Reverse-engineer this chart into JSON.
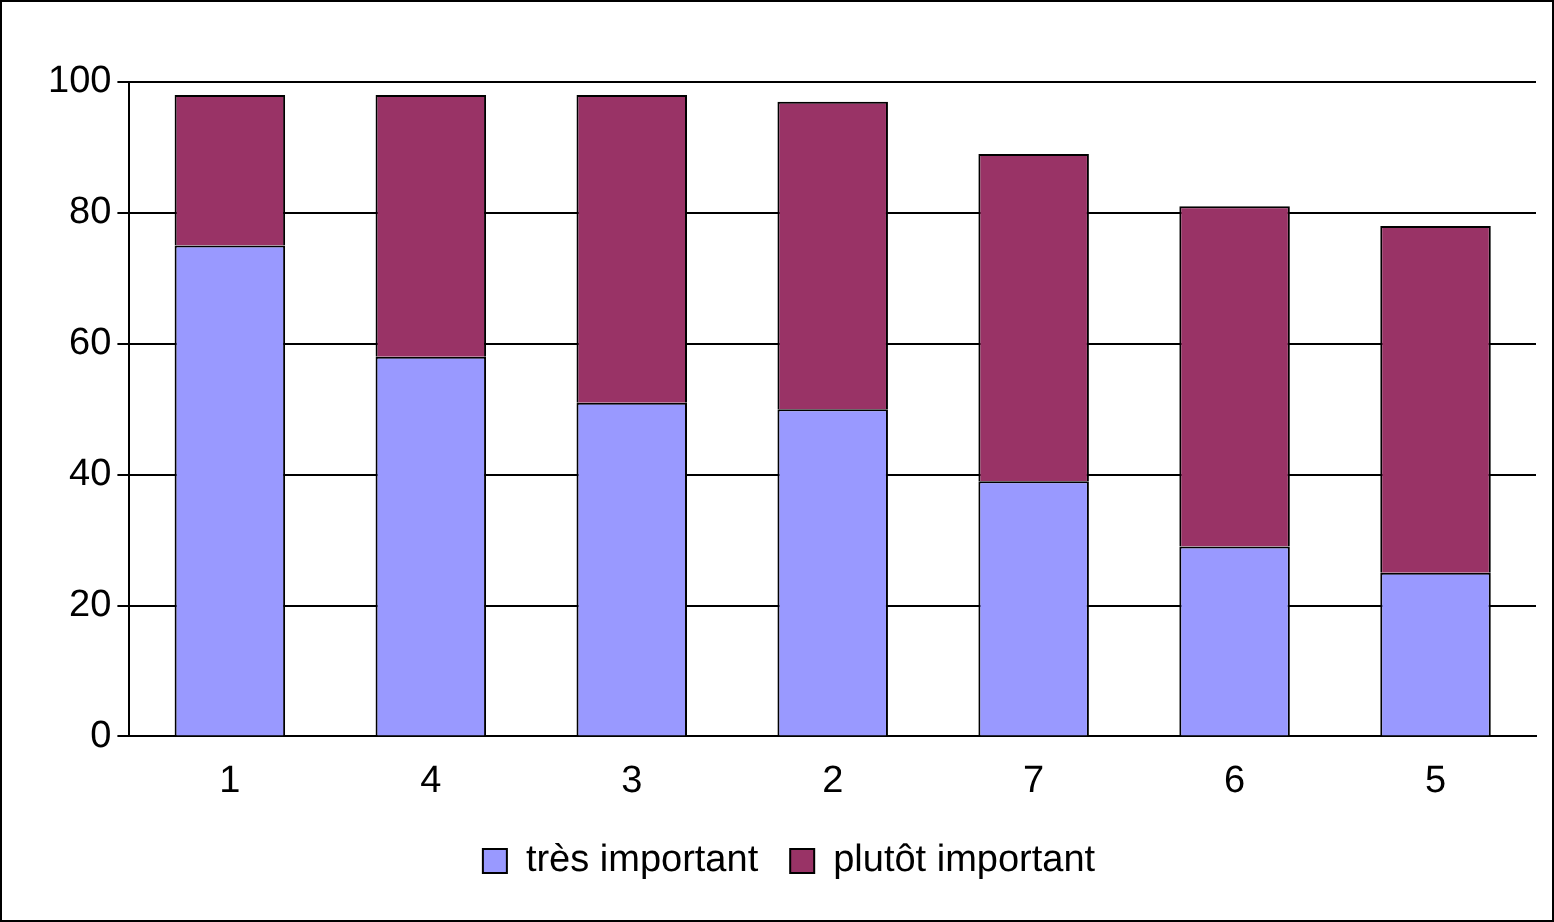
{
  "chart_data": {
    "type": "bar",
    "stacked": true,
    "categories": [
      "1",
      "4",
      "3",
      "2",
      "7",
      "6",
      "5"
    ],
    "series": [
      {
        "name": "très important",
        "color": "#9999ff",
        "values": [
          75,
          58,
          51,
          50,
          39,
          29,
          25
        ]
      },
      {
        "name": "plutôt important",
        "color": "#993366",
        "values": [
          23,
          40,
          47,
          47,
          50,
          52,
          53
        ]
      }
    ],
    "ylim": [
      0,
      100
    ],
    "yticks": [
      0,
      20,
      40,
      60,
      80,
      100
    ],
    "grid": "y",
    "legend": "bottom"
  }
}
